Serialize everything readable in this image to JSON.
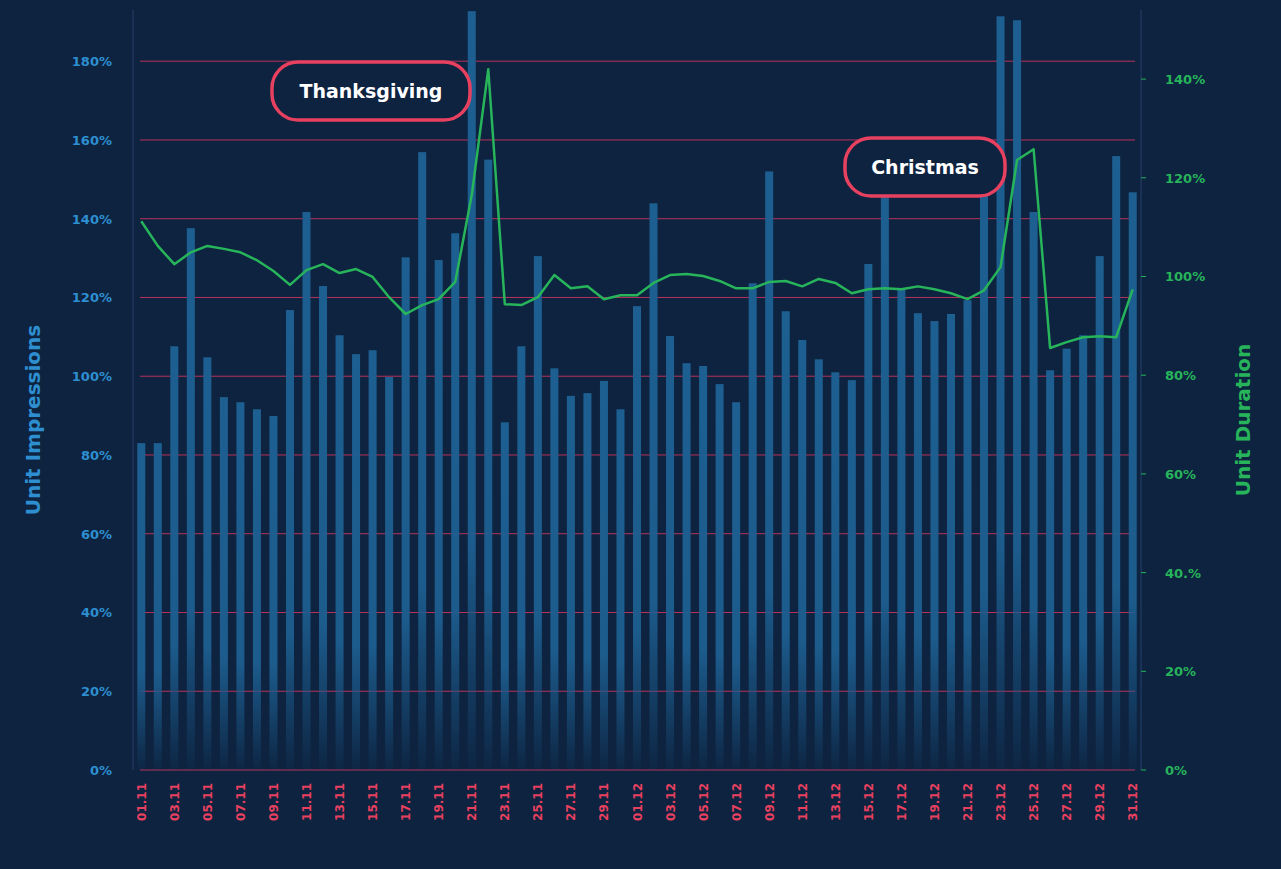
{
  "chart_data": {
    "type": "bar",
    "categories": [
      "01.11",
      null,
      "03.11",
      null,
      "05.11",
      null,
      "07.11",
      null,
      "09.11",
      null,
      "11.11",
      null,
      "13.11",
      null,
      "15.11",
      null,
      "17.11",
      null,
      "19.11",
      null,
      "21.11",
      null,
      "23.11",
      null,
      "25.11",
      null,
      "27.11",
      null,
      "29.11",
      null,
      "01.12",
      null,
      "03.12",
      null,
      "05.12",
      null,
      "07.12",
      null,
      "09.12",
      null,
      "11.12",
      null,
      "13.12",
      null,
      "15.12",
      null,
      "17.12",
      null,
      "19.12",
      null,
      "21.12",
      null,
      "23.12",
      null,
      "25.12",
      null,
      "27.12",
      null,
      "29.12",
      null,
      "31.12"
    ],
    "series": [
      {
        "name": "Unit Impressions",
        "type": "bar",
        "color": "#1d5f91",
        "values": [
          83,
          83,
          107.6,
          137.6,
          104.8,
          94.7,
          93.4,
          91.6,
          89.9,
          116.8,
          141.7,
          122.9,
          110.4,
          105.6,
          106.6,
          99.8,
          130.2,
          156.9,
          129.5,
          136.3,
          192.7,
          155,
          88.3,
          107.6,
          130.5,
          102,
          95,
          95.7,
          98.8,
          91.6,
          117.8,
          143.9,
          110.2,
          103.3,
          102.6,
          98,
          93.4,
          123.6,
          152,
          116.5,
          109.2,
          104.3,
          101,
          99,
          128.5,
          145.5,
          122,
          116,
          114,
          115.8,
          119.3,
          150,
          191.4,
          190.4,
          141.7,
          101.5,
          107,
          110.4,
          130.5,
          155.9,
          146.7
        ]
      },
      {
        "name": "Unit Duration",
        "type": "line",
        "axis": "y2",
        "color": "#27b45a",
        "values": [
          111.2,
          106.2,
          102.5,
          104.9,
          106.2,
          105.6,
          104.9,
          103.3,
          101.1,
          98.3,
          101.3,
          102.5,
          100.7,
          101.5,
          99.9,
          95.8,
          92.4,
          94.2,
          95.4,
          98.9,
          116.5,
          142,
          94.4,
          94.2,
          95.8,
          100.3,
          97.6,
          98,
          95.4,
          96.2,
          96.2,
          98.7,
          100.3,
          100.5,
          100.1,
          99.1,
          97.6,
          97.6,
          98.9,
          99.1,
          98,
          99.5,
          98.7,
          96.6,
          97.4,
          97.6,
          97.4,
          98,
          97.4,
          96.6,
          95.4,
          97.2,
          101.9,
          123.6,
          125.8,
          85.5,
          86.7,
          87.7,
          87.9,
          87.7,
          97.4
        ]
      }
    ],
    "ylim": [
      0,
      193
    ],
    "yticks": [
      {
        "value": 0,
        "label": "0%"
      },
      {
        "value": 20,
        "label": "20%"
      },
      {
        "value": 40,
        "label": "40%"
      },
      {
        "value": 60,
        "label": "60%"
      },
      {
        "value": 80,
        "label": "80%"
      },
      {
        "value": 100,
        "label": "100%"
      },
      {
        "value": 120,
        "label": "120%"
      },
      {
        "value": 140,
        "label": "140%"
      },
      {
        "value": 160,
        "label": "160%"
      },
      {
        "value": 180,
        "label": "180%"
      }
    ],
    "y2lim": [
      0,
      154
    ],
    "y2ticks": [
      {
        "value": 0,
        "label": "0%"
      },
      {
        "value": 20,
        "label": "20%"
      },
      {
        "value": 40,
        "label": "40.%"
      },
      {
        "value": 60,
        "label": "60%"
      },
      {
        "value": 80,
        "label": "80%"
      },
      {
        "value": 100,
        "label": "100%"
      },
      {
        "value": 120,
        "label": "120%"
      },
      {
        "value": 140,
        "label": "140%"
      }
    ],
    "grid": true,
    "annotations": [
      {
        "text": "Thanksgiving"
      },
      {
        "text": "Christmas"
      }
    ]
  }
}
